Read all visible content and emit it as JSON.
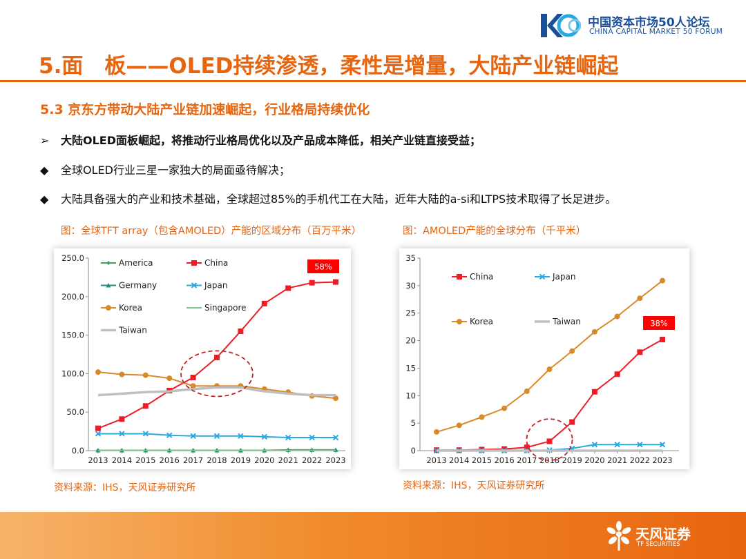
{
  "header": {
    "logo_mark": "K50",
    "logo_cn": "中国资本市场50人论坛",
    "logo_en": "CHINA CAPITAL MARKET 50 FORUM",
    "title": "5.面　板——OLED持续渗透，柔性是增量，大陆产业链崛起",
    "subtitle": "5.3 京东方带动大陆产业链加速崛起，行业格局持续优化"
  },
  "bullets": [
    {
      "marker": "➢",
      "text": "大陆OLED面板崛起，将推动行业格局优化以及产品成本降低，相关产业链直接受益；"
    },
    {
      "marker": "◆",
      "text": "全球OLED行业三星一家独大的局面亟待解决；"
    },
    {
      "marker": "◆",
      "text": "大陆具备强大的产业和技术基础，全球超过85%的手机代工在大陆，近年大陆的a-si和LTPS技术取得了长足进步。"
    }
  ],
  "captions": {
    "left": "图：全球TFT array（包含AMOLED）产能的区域分布（百万平米）",
    "right": "图：AMOLED产能的全球分布（千平米）"
  },
  "sources": {
    "left": "资料来源：IHS，天风证券研究所",
    "right": "资料来源：IHS，天风证券研究所"
  },
  "footer": {
    "logo_cn": "天风证券",
    "logo_en": "TF SECURITIES"
  },
  "chart_data": [
    {
      "type": "line",
      "x": [
        "2013",
        "2014",
        "2015",
        "2016",
        "2017",
        "2018",
        "2019",
        "2020",
        "2021",
        "2022",
        "2023"
      ],
      "ylim": [
        0,
        250
      ],
      "yticks": [
        "0.0",
        "50.0",
        "100.0",
        "150.0",
        "200.0",
        "250.0"
      ],
      "legend_position": "top-left",
      "grid": false,
      "annotation": {
        "text": "58%",
        "color": "#ff0000"
      },
      "highlight_ellipse": {
        "x_center": "2018",
        "y_center": 100
      },
      "series": [
        {
          "name": "America",
          "color": "#3aa55a",
          "marker": "diamond",
          "values": [
            0.5,
            0.5,
            0.5,
            0.5,
            0.5,
            0.5,
            0.5,
            0.5,
            0.5,
            0.5,
            0.5
          ]
        },
        {
          "name": "China",
          "color": "#ee1c25",
          "marker": "square",
          "values": [
            29,
            41,
            58,
            78,
            95,
            121,
            155,
            191,
            211,
            218,
            219
          ]
        },
        {
          "name": "Germany",
          "color": "#1f8f7a",
          "marker": "triangle",
          "values": [
            0.5,
            0.5,
            0.5,
            0.5,
            0.5,
            0.5,
            0.5,
            0.5,
            1,
            1,
            1
          ]
        },
        {
          "name": "Japan",
          "color": "#29a9e0",
          "marker": "x",
          "values": [
            22,
            22,
            22,
            20,
            19,
            19,
            19,
            18,
            17,
            17,
            17
          ]
        },
        {
          "name": "Korea",
          "color": "#d8892a",
          "marker": "circle",
          "values": [
            102,
            99,
            98,
            94,
            84,
            84,
            84,
            80,
            76,
            71,
            68
          ]
        },
        {
          "name": "Singapore",
          "color": "#7cc48f",
          "marker": "none",
          "values": [
            0.3,
            0.3,
            0.3,
            0.3,
            0.3,
            0.3,
            0.3,
            0.3,
            0.3,
            0.3,
            0.3
          ]
        },
        {
          "name": "Taiwan",
          "color": "#bfbfbf",
          "marker": "none",
          "values": [
            72,
            74,
            76,
            77,
            80,
            82,
            82,
            77,
            74,
            72,
            72
          ]
        }
      ]
    },
    {
      "type": "line",
      "x": [
        "2013",
        "2014",
        "2015",
        "2016",
        "2017",
        "2018",
        "2019",
        "2020",
        "2021",
        "2022",
        "2023"
      ],
      "ylim": [
        0,
        35
      ],
      "yticks": [
        "0",
        "5",
        "10",
        "15",
        "20",
        "25",
        "30",
        "35"
      ],
      "legend_position": "top-left",
      "grid": false,
      "annotation": {
        "text": "38%",
        "color": "#ff0000"
      },
      "highlight_ellipse": {
        "x_center": "2018",
        "y_center": 2
      },
      "series": [
        {
          "name": "China",
          "color": "#ee1c25",
          "marker": "square",
          "values": [
            0.1,
            0.1,
            0.2,
            0.3,
            0.6,
            1.7,
            5.2,
            10.7,
            13.9,
            17.9,
            20.2
          ]
        },
        {
          "name": "Japan",
          "color": "#29a9e0",
          "marker": "x",
          "values": [
            0,
            0,
            0,
            0,
            0,
            0.1,
            0.4,
            1.1,
            1.1,
            1.1,
            1.1
          ]
        },
        {
          "name": "Korea",
          "color": "#d8892a",
          "marker": "circle",
          "values": [
            3.4,
            4.6,
            6.1,
            7.7,
            10.8,
            14.8,
            18.1,
            21.6,
            24.4,
            27.7,
            30.9
          ]
        },
        {
          "name": "Taiwan",
          "color": "#bfbfbf",
          "marker": "none",
          "values": [
            0,
            0,
            0,
            0,
            0,
            0,
            0,
            0,
            0,
            0,
            0
          ]
        }
      ]
    }
  ]
}
